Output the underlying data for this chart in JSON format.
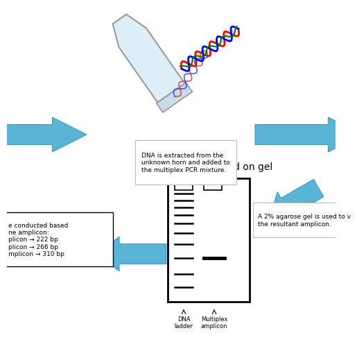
{
  "bg_color": "#ffffff",
  "arrow_color": "#5ab4d6",
  "arrow_edge_color": "#4499bb",
  "title_gel": "Amplicon visualized on gel",
  "text_dna_box": "DNA is extracted from the\nunknown horn and added to\nthe multiplex PCR mixture.",
  "text_gel_box": "A 2% agarose gel is used to v\nthe resultant amplicon.",
  "text_result_box": "e conducted based\nne amplicon:\nplicon → 222 bp\nplicon → 266 bp\nmplicon → 310 bp",
  "label_ladder": "DNA\nladder",
  "label_amplicon": "Multiplex\namplicon",
  "font_size_title": 10,
  "font_size_text": 6.5,
  "font_size_labels": 6
}
